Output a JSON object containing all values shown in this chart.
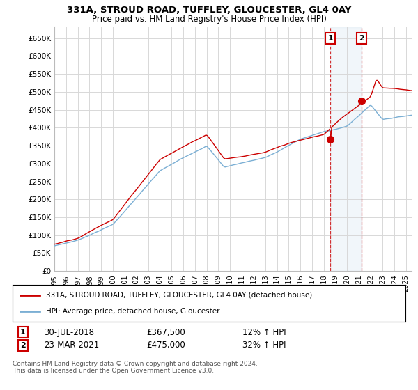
{
  "title": "331A, STROUD ROAD, TUFFLEY, GLOUCESTER, GL4 0AY",
  "subtitle": "Price paid vs. HM Land Registry's House Price Index (HPI)",
  "ylabel_ticks": [
    "£0",
    "£50K",
    "£100K",
    "£150K",
    "£200K",
    "£250K",
    "£300K",
    "£350K",
    "£400K",
    "£450K",
    "£500K",
    "£550K",
    "£600K",
    "£650K"
  ],
  "ytick_values": [
    0,
    50000,
    100000,
    150000,
    200000,
    250000,
    300000,
    350000,
    400000,
    450000,
    500000,
    550000,
    600000,
    650000
  ],
  "ylim": [
    0,
    680000
  ],
  "background_color": "#ffffff",
  "grid_color": "#d8d8d8",
  "sale1_date": 2018.57,
  "sale1_price": 367500,
  "sale2_date": 2021.22,
  "sale2_price": 475000,
  "property_color": "#cc0000",
  "hpi_color": "#7bafd4",
  "legend_property": "331A, STROUD ROAD, TUFFLEY, GLOUCESTER, GL4 0AY (detached house)",
  "legend_hpi": "HPI: Average price, detached house, Gloucester",
  "annotation1_date": "30-JUL-2018",
  "annotation1_price": "£367,500",
  "annotation1_hpi": "12% ↑ HPI",
  "annotation2_date": "23-MAR-2021",
  "annotation2_price": "£475,000",
  "annotation2_hpi": "32% ↑ HPI",
  "footer": "Contains HM Land Registry data © Crown copyright and database right 2024.\nThis data is licensed under the Open Government Licence v3.0.",
  "xmin": 1995,
  "xmax": 2025.5
}
